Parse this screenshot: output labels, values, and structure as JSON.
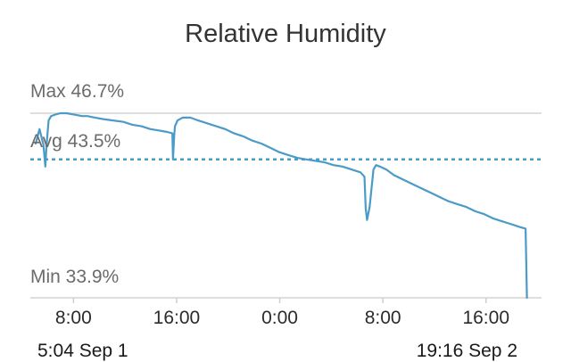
{
  "chart_data": {
    "type": "line",
    "title": "Relative Humidity",
    "reference_lines": {
      "max": {
        "label": "Max 46.7%",
        "value": 46.7
      },
      "avg": {
        "label": "Avg 43.5%",
        "value": 43.5
      },
      "min": {
        "label": "Min 33.9%",
        "value": 33.9
      }
    },
    "x_tick_labels": [
      "8:00",
      "16:00",
      "0:00",
      "8:00",
      "16:00"
    ],
    "x_ticks_hours": [
      2.93,
      10.93,
      18.93,
      26.93,
      34.93
    ],
    "x_range_hours": [
      0,
      38.2
    ],
    "ylim": [
      33.9,
      46.7
    ],
    "range_start": "5:04   Sep 1",
    "range_end": "19:16   Sep 2",
    "line_color": "#4a9bc7",
    "grid": true,
    "series": [
      {
        "x": [
          0.0,
          0.3,
          0.6,
          0.75,
          0.85,
          1.0,
          1.2,
          1.5,
          1.9,
          2.4,
          3.0,
          3.6,
          4.0,
          4.6,
          5.2,
          6.0,
          6.8,
          7.5,
          8.2,
          8.9,
          9.6,
          10.2,
          10.6,
          10.65,
          10.75,
          10.8,
          11.0,
          11.4,
          12.0,
          12.6,
          13.3,
          14.0,
          14.7,
          15.4,
          16.1,
          16.8,
          17.5,
          18.2,
          18.9,
          19.6,
          20.3,
          21.0,
          21.7,
          22.4,
          23.1,
          23.8,
          24.5,
          25.2,
          25.5,
          25.6,
          25.7,
          25.9,
          26.2,
          26.4,
          26.7,
          27.2,
          27.8,
          28.5,
          29.2,
          29.9,
          30.6,
          31.3,
          32.0,
          32.7,
          33.4,
          34.1,
          34.8,
          35.5,
          36.2,
          36.9,
          37.6,
          38.0,
          38.1
        ],
        "y": [
          44.6,
          45.6,
          44.5,
          43.0,
          44.6,
          46.2,
          46.5,
          46.6,
          46.7,
          46.7,
          46.6,
          46.5,
          46.5,
          46.4,
          46.3,
          46.2,
          46.1,
          45.9,
          45.8,
          45.6,
          45.5,
          45.4,
          45.3,
          43.5,
          45.2,
          45.8,
          46.2,
          46.4,
          46.4,
          46.2,
          46.0,
          45.8,
          45.6,
          45.3,
          45.1,
          44.8,
          44.6,
          44.3,
          44.0,
          43.8,
          43.6,
          43.5,
          43.4,
          43.3,
          43.1,
          43.0,
          42.8,
          42.6,
          42.3,
          40.1,
          39.3,
          40.2,
          42.8,
          43.1,
          43.0,
          42.8,
          42.4,
          42.1,
          41.8,
          41.5,
          41.2,
          40.9,
          40.6,
          40.4,
          40.2,
          39.9,
          39.7,
          39.4,
          39.2,
          39.0,
          38.8,
          38.7,
          33.9
        ]
      }
    ]
  }
}
